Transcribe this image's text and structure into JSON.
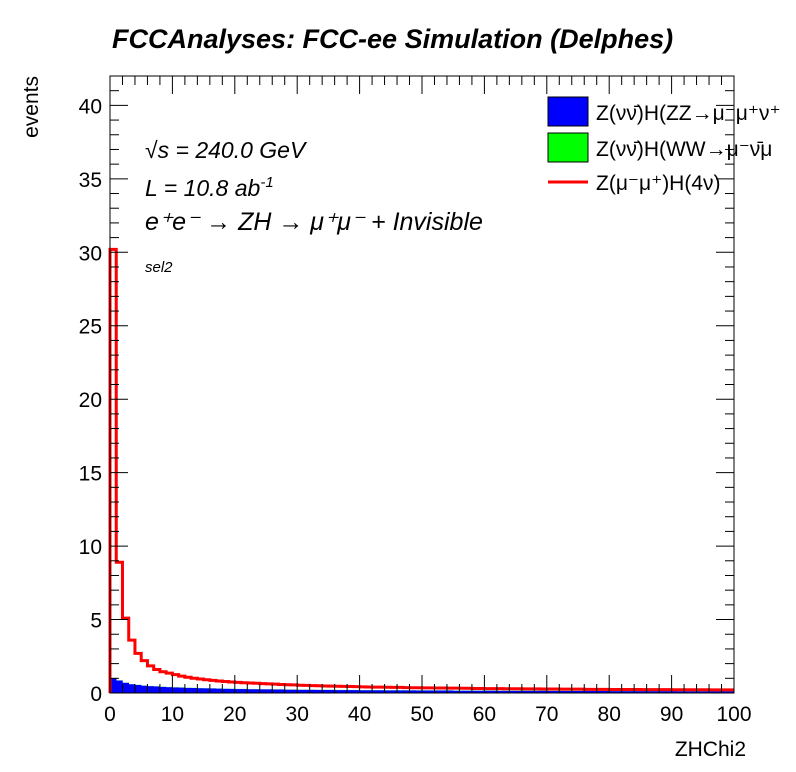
{
  "chart_data": {
    "type": "histogram",
    "title": "FCCAnalyses: FCC-ee Simulation (Delphes)",
    "xlabel": "ZHChi2",
    "ylabel": "events",
    "xlim": [
      0,
      100
    ],
    "ylim": [
      0,
      42
    ],
    "xticks": [
      0,
      10,
      20,
      30,
      40,
      50,
      60,
      70,
      80,
      90,
      100
    ],
    "yticks": [
      0,
      5,
      10,
      15,
      20,
      25,
      30,
      35,
      40
    ],
    "grid": false,
    "legend_position": "top-right",
    "annotations": {
      "sqrt_s_symbol": "√s",
      "sqrt_s_value": " = 240.0 GeV",
      "lumi": "L = 10.8 ab",
      "lumi_sup": "-1",
      "process": "e⁺e⁻ → ZH → μ⁺μ⁻ + Invisible",
      "selection": "sel2"
    },
    "bin_width": 1,
    "series": [
      {
        "name": "Z(νν̄)H(ZZ→μ⁻μ⁺ν⁺",
        "style": "filled",
        "color": "#0000ff",
        "values": [
          1.0,
          0.85,
          0.7,
          0.6,
          0.55,
          0.5,
          0.47,
          0.45,
          0.42,
          0.4,
          0.38,
          0.37,
          0.35,
          0.34,
          0.33,
          0.32,
          0.31,
          0.3,
          0.29,
          0.28,
          0.27,
          0.27,
          0.26,
          0.26,
          0.25,
          0.25,
          0.24,
          0.24,
          0.23,
          0.23,
          0.22,
          0.22,
          0.22,
          0.21,
          0.21,
          0.21,
          0.2,
          0.2,
          0.2,
          0.2,
          0.19,
          0.19,
          0.19,
          0.19,
          0.18,
          0.18,
          0.18,
          0.18,
          0.18,
          0.17,
          0.17,
          0.17,
          0.17,
          0.17,
          0.17,
          0.16,
          0.16,
          0.16,
          0.16,
          0.16,
          0.16,
          0.16,
          0.15,
          0.15,
          0.15,
          0.15,
          0.15,
          0.15,
          0.15,
          0.15,
          0.14,
          0.14,
          0.14,
          0.14,
          0.14,
          0.14,
          0.14,
          0.14,
          0.14,
          0.14,
          0.13,
          0.13,
          0.13,
          0.13,
          0.13,
          0.13,
          0.13,
          0.13,
          0.13,
          0.13,
          0.13,
          0.12,
          0.12,
          0.12,
          0.12,
          0.12,
          0.12,
          0.12,
          0.12,
          0.12
        ]
      },
      {
        "name": "Z(νν̄)H(WW→μ⁻ν̄μ",
        "style": "filled",
        "color": "#00ff00",
        "values": [
          0.01,
          0.01,
          0.01,
          0.01,
          0.01,
          0.01,
          0.01,
          0.01,
          0.01,
          0.01,
          0.01,
          0.01,
          0.01,
          0.01,
          0.01,
          0.01,
          0.01,
          0.01,
          0.01,
          0.01,
          0.01,
          0.01,
          0.01,
          0.01,
          0.01,
          0.01,
          0.01,
          0.01,
          0.01,
          0.01,
          0.01,
          0.01,
          0.01,
          0.01,
          0.01,
          0.01,
          0.01,
          0.01,
          0.01,
          0.01,
          0.01,
          0.01,
          0.01,
          0.01,
          0.01,
          0.01,
          0.01,
          0.01,
          0.01,
          0.01,
          0.01,
          0.01,
          0.01,
          0.01,
          0.01,
          0.01,
          0.01,
          0.01,
          0.01,
          0.01,
          0.01,
          0.01,
          0.01,
          0.01,
          0.01,
          0.01,
          0.01,
          0.01,
          0.01,
          0.01,
          0.01,
          0.01,
          0.01,
          0.01,
          0.01,
          0.01,
          0.01,
          0.01,
          0.01,
          0.01,
          0.01,
          0.01,
          0.01,
          0.01,
          0.01,
          0.01,
          0.01,
          0.01,
          0.01,
          0.01,
          0.01,
          0.01,
          0.01,
          0.01,
          0.01,
          0.01,
          0.01,
          0.01,
          0.01,
          0.01
        ]
      },
      {
        "name": "Z(μ⁻μ⁺)H(4ν)",
        "style": "line",
        "color": "#ff0000",
        "values": [
          30.2,
          8.9,
          5.1,
          3.6,
          2.7,
          2.2,
          1.85,
          1.6,
          1.45,
          1.35,
          1.25,
          1.15,
          1.07,
          1.0,
          0.95,
          0.9,
          0.86,
          0.82,
          0.78,
          0.75,
          0.72,
          0.7,
          0.68,
          0.66,
          0.64,
          0.62,
          0.6,
          0.58,
          0.56,
          0.55,
          0.53,
          0.52,
          0.5,
          0.49,
          0.48,
          0.47,
          0.46,
          0.45,
          0.44,
          0.43,
          0.42,
          0.41,
          0.4,
          0.4,
          0.39,
          0.38,
          0.38,
          0.37,
          0.36,
          0.36,
          0.35,
          0.35,
          0.34,
          0.34,
          0.33,
          0.33,
          0.32,
          0.32,
          0.31,
          0.31,
          0.3,
          0.3,
          0.3,
          0.29,
          0.29,
          0.29,
          0.28,
          0.28,
          0.28,
          0.27,
          0.27,
          0.27,
          0.26,
          0.26,
          0.26,
          0.26,
          0.25,
          0.25,
          0.25,
          0.25,
          0.24,
          0.24,
          0.24,
          0.24,
          0.24,
          0.23,
          0.23,
          0.23,
          0.23,
          0.23,
          0.22,
          0.22,
          0.22,
          0.22,
          0.22,
          0.22,
          0.21,
          0.21,
          0.21,
          0.21
        ]
      }
    ]
  }
}
